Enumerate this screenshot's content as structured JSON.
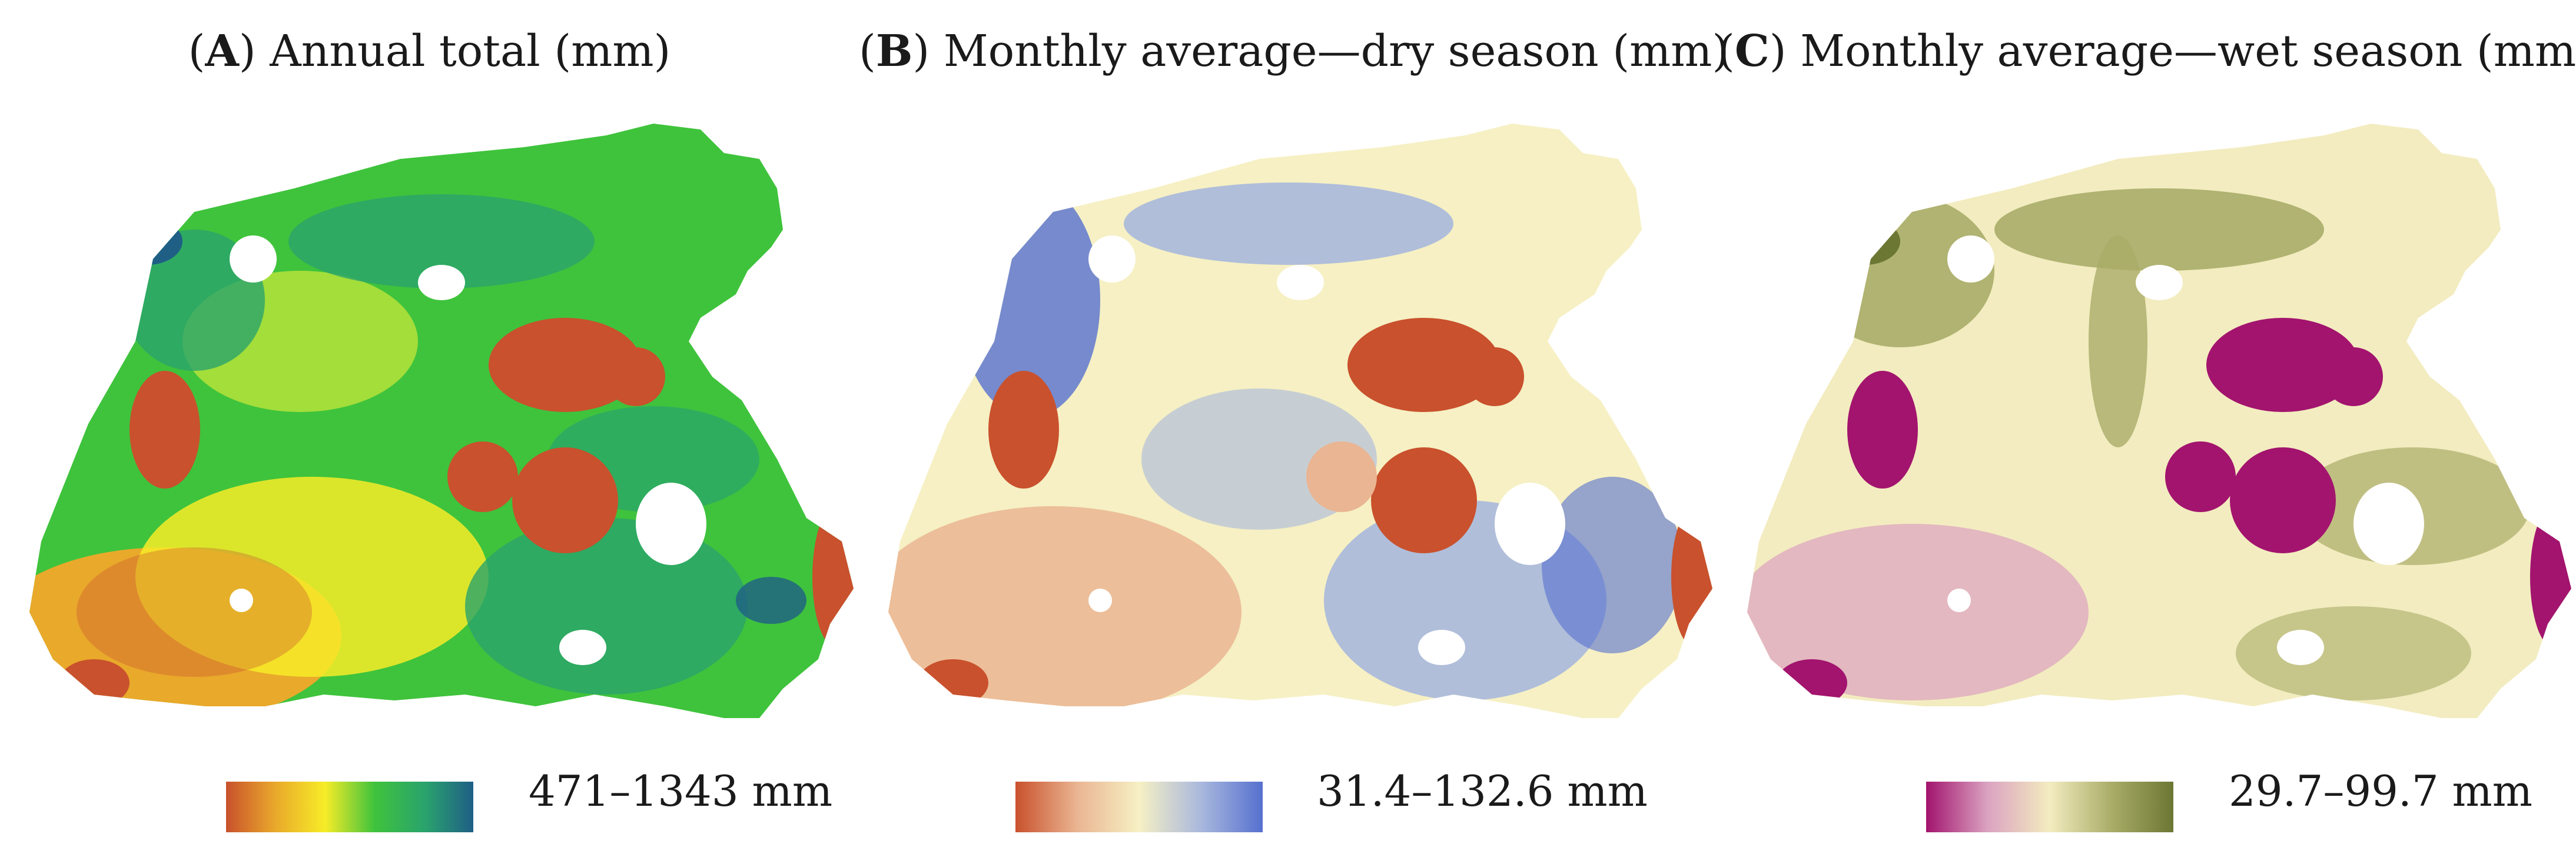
{
  "panels": [
    {
      "letter": "A",
      "title": "Annual total (mm)",
      "legend_range": "471–1343 mm",
      "colors": {
        "low": "#c9512d",
        "mid_low": "#e9a92b",
        "mid": "#f7ec28",
        "mid_high": "#3fc33c",
        "high_a": "#2aa46c",
        "high": "#1f5f86"
      }
    },
    {
      "letter": "B",
      "title": "Monthly average—dry season (mm)",
      "legend_range": "31.4–132.6 mm",
      "colors": {
        "low": "#c9512d",
        "mid_low": "#eab592",
        "mid": "#f6f0c4",
        "mid_high": "#a9b8dd",
        "high": "#5670cf"
      }
    },
    {
      "letter": "C",
      "title": "Monthly average—wet season (mm)",
      "legend_range": "29.7–99.7 mm",
      "colors": {
        "low": "#a2146e",
        "mid_low": "#dba3c1",
        "mid": "#f3ecc0",
        "mid_high": "#a9ad68",
        "high": "#6c7734"
      }
    }
  ]
}
